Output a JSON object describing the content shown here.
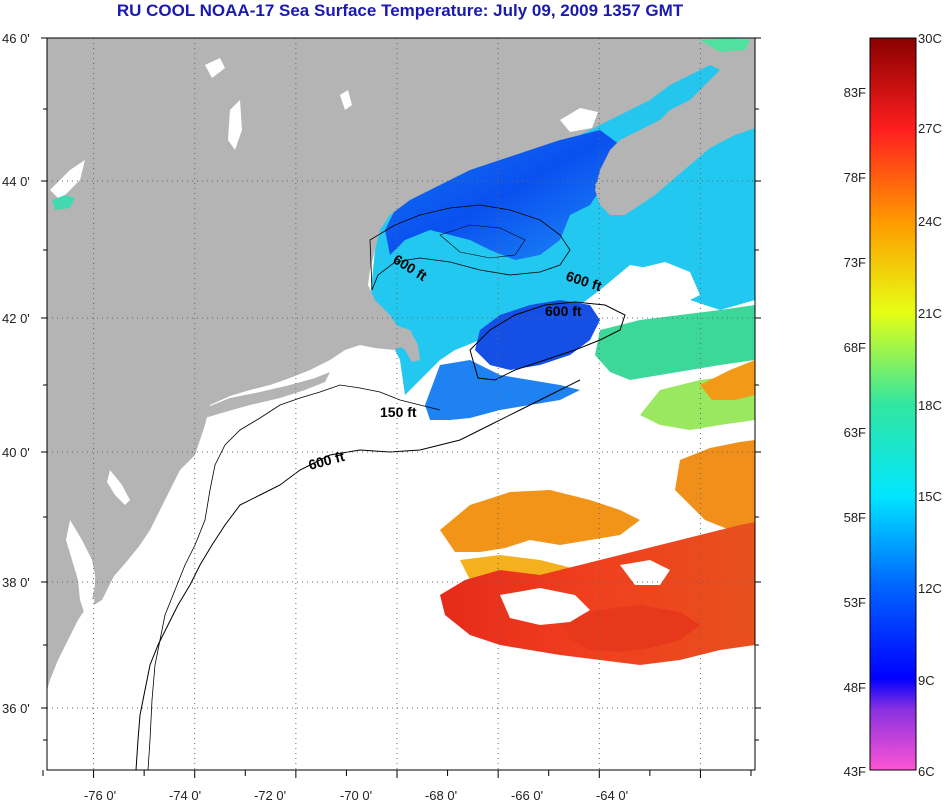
{
  "title": "RU COOL  NOAA-17  Sea Surface Temperature:  July 09, 2009 1357 GMT",
  "map": {
    "lat_ticks": [
      {
        "value": 46,
        "label": "46 0'"
      },
      {
        "value": 44,
        "label": "44 0'"
      },
      {
        "value": 42,
        "label": "42 0'"
      },
      {
        "value": 40,
        "label": "40 0'"
      },
      {
        "value": 38,
        "label": "38 0'"
      },
      {
        "value": 36,
        "label": "36 0'"
      }
    ],
    "lon_ticks": [
      {
        "value": -76,
        "label": "-76 0'"
      },
      {
        "value": -74,
        "label": "-74 0'"
      },
      {
        "value": -72,
        "label": "-72 0'"
      },
      {
        "value": -70,
        "label": "-70 0'"
      },
      {
        "value": -68,
        "label": "-68 0'"
      },
      {
        "value": -66,
        "label": "-66 0'"
      },
      {
        "value": -64,
        "label": "-64 0'"
      }
    ],
    "contour_labels": [
      "600 ft",
      "600 ft",
      "600 ft",
      "150 ft",
      "600 ft"
    ],
    "colors": {
      "land": "#b4b4b4",
      "ocean_no_data": "#ffffff",
      "grid": "#666666",
      "coast": "#000000"
    }
  },
  "colorbar": {
    "fahrenheit_labels": [
      "83F",
      "78F",
      "73F",
      "68F",
      "63F",
      "58F",
      "53F",
      "48F",
      "43F"
    ],
    "celsius_labels": [
      "30C",
      "27C",
      "24C",
      "21C",
      "18C",
      "15C",
      "12C",
      "9C",
      "6C"
    ],
    "range_c": [
      6,
      30
    ],
    "stops": [
      {
        "c": 6,
        "color": "#ff55d4"
      },
      {
        "c": 8,
        "color": "#8830e0"
      },
      {
        "c": 9,
        "color": "#0000ff"
      },
      {
        "c": 12,
        "color": "#0064ff"
      },
      {
        "c": 15,
        "color": "#00e6ff"
      },
      {
        "c": 18,
        "color": "#32e6a0"
      },
      {
        "c": 21,
        "color": "#e6ff14"
      },
      {
        "c": 24,
        "color": "#ff9900"
      },
      {
        "c": 27,
        "color": "#ff1e1e"
      },
      {
        "c": 30,
        "color": "#8a0000"
      }
    ]
  }
}
